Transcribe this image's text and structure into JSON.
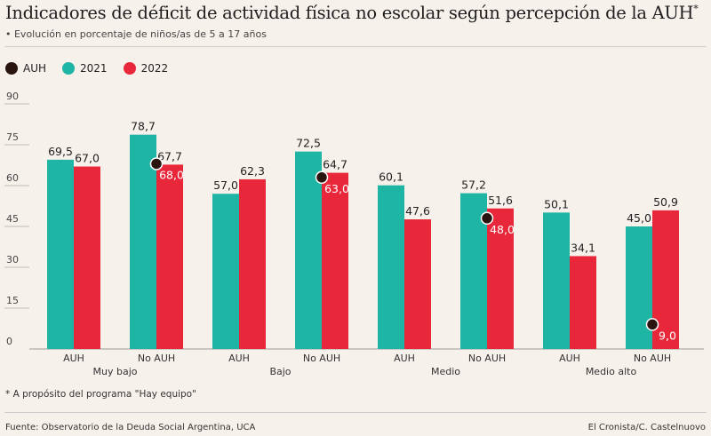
{
  "header": {
    "title": "Indicadores de déficit de actividad física no escolar según percepción de la AUH",
    "title_mark": "*",
    "subtitle": "• Evolución en porcentaje de niños/as de 5 a 17 años"
  },
  "footer": {
    "footnote": "* A propósito del programa \"Hay equipo\"",
    "source": "Fuente: Observatorio de la Deuda Social Argentina, UCA",
    "credit": "El Cronista/C. Castelnuovo"
  },
  "chart_data": {
    "type": "bar",
    "colors": {
      "AUH": "#2a1410",
      "2021": "#1fb5a5",
      "2022": "#e8283a"
    },
    "legend": [
      "AUH",
      "2021",
      "2022"
    ],
    "legend_position": "top-left",
    "ylim": [
      0,
      90
    ],
    "yticks": [
      "0",
      "15",
      "30",
      "45",
      "60",
      "75",
      "90"
    ],
    "groups": [
      "Muy bajo",
      "Bajo",
      "Medio",
      "Medio alto"
    ],
    "categories": [
      "AUH",
      "No AUH",
      "AUH",
      "No AUH",
      "AUH",
      "No AUH",
      "AUH",
      "No AUH"
    ],
    "series": [
      {
        "name": "2021",
        "values": [
          69.5,
          78.7,
          57.0,
          72.5,
          60.1,
          57.2,
          50.1,
          45.0
        ],
        "labels": [
          "69,5",
          "78,7",
          "57,0",
          "72,5",
          "60,1",
          "57,2",
          "50,1",
          "45,0"
        ]
      },
      {
        "name": "2022",
        "values": [
          67.0,
          67.7,
          62.3,
          64.7,
          47.6,
          51.6,
          34.1,
          50.9
        ],
        "labels": [
          "67,0",
          "67,7",
          "62,3",
          "64,7",
          "47,6",
          "51,6",
          "34,1",
          "50,9"
        ]
      },
      {
        "name": "AUH",
        "values": [
          null,
          68.0,
          null,
          63.0,
          null,
          48.0,
          null,
          9.0
        ],
        "labels": [
          null,
          "68,0",
          null,
          "63,0",
          null,
          "48,0",
          null,
          "9,0"
        ]
      }
    ]
  }
}
